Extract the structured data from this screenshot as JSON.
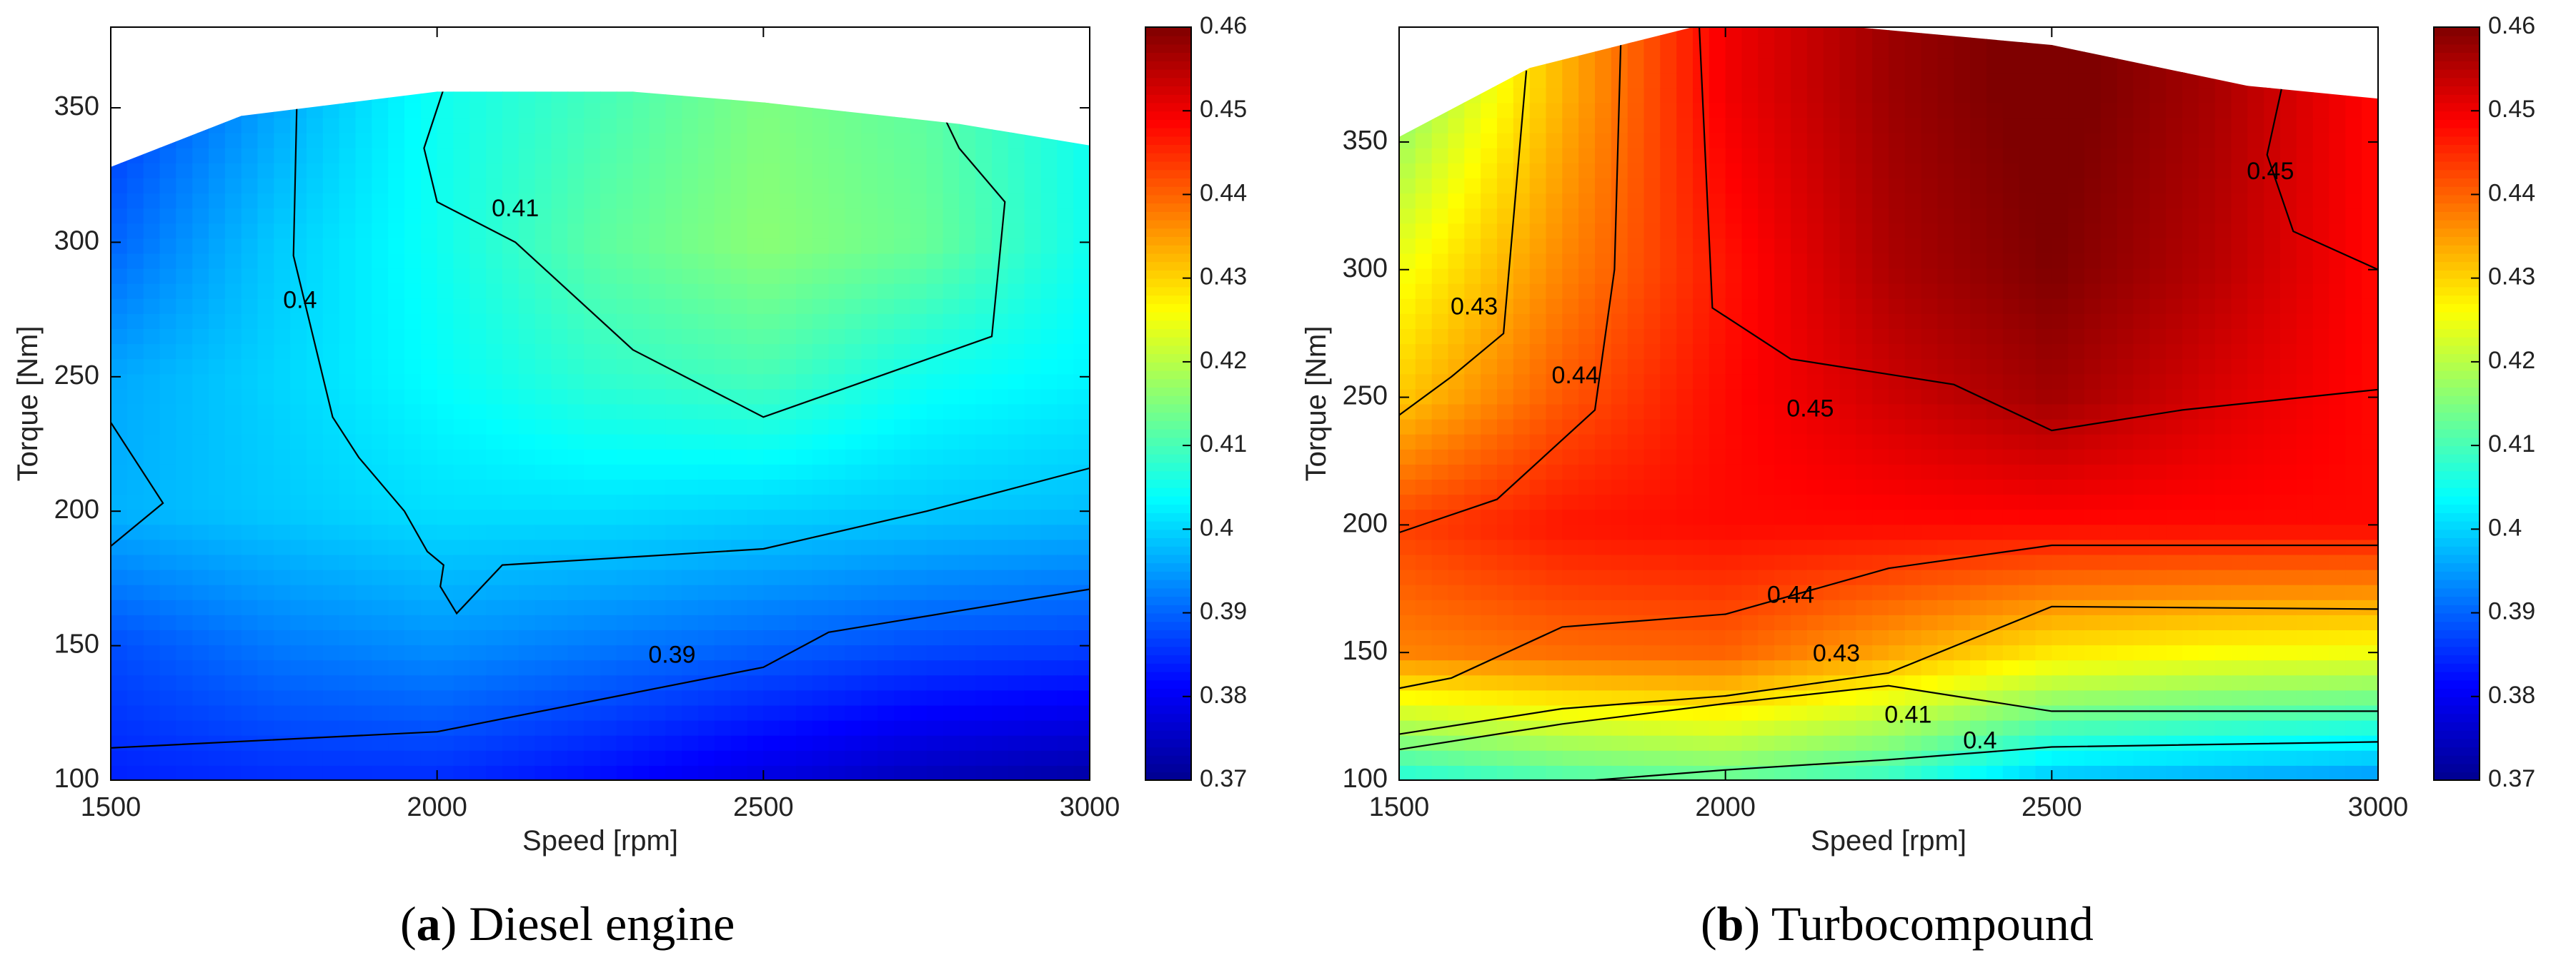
{
  "colors": {
    "colormap": [
      "#00008f",
      "#0000ff",
      "#007fff",
      "#00ffff",
      "#7fff7f",
      "#ffff00",
      "#ff7f00",
      "#ff0000",
      "#7f0000"
    ],
    "contour_line": "#000000",
    "axis": "#000000"
  },
  "chart_data": [
    {
      "type": "heatmap",
      "id": "a",
      "caption_letter": "a",
      "caption_text": "Diesel engine",
      "xlabel": "Speed [rpm]",
      "ylabel": "Torque [Nm]",
      "xlim": [
        1500,
        3000
      ],
      "ylim": [
        100,
        380
      ],
      "xticks": [
        1500,
        2000,
        2500,
        3000
      ],
      "yticks": [
        100,
        150,
        200,
        250,
        300,
        350
      ],
      "colorbar": {
        "min": 0.37,
        "max": 0.46,
        "ticks": [
          "0.37",
          "0.38",
          "0.39",
          "0.4",
          "0.41",
          "0.42",
          "0.43",
          "0.44",
          "0.45",
          "0.46"
        ]
      },
      "max_torque_curve": {
        "speed": [
          1500,
          1700,
          2000,
          2300,
          2500,
          2800,
          3000
        ],
        "torque": [
          328,
          347,
          356,
          356,
          352,
          344,
          336
        ]
      },
      "grid": {
        "speed": [
          1500,
          1750,
          2000,
          2250,
          2500,
          2750,
          3000
        ],
        "torque": [
          100,
          150,
          200,
          250,
          300,
          350
        ],
        "efficiency": [
          [
            0.384,
            0.385,
            0.385,
            0.382,
            0.378,
            0.374,
            0.372
          ],
          [
            0.388,
            0.392,
            0.394,
            0.392,
            0.39,
            0.388,
            0.387
          ],
          [
            0.397,
            0.399,
            0.401,
            0.401,
            0.4,
            0.399,
            0.398
          ],
          [
            0.396,
            0.4,
            0.404,
            0.408,
            0.41,
            0.405,
            0.403
          ],
          [
            0.39,
            0.399,
            0.405,
            0.412,
            0.416,
            0.413,
            0.405
          ],
          [
            0.386,
            0.396,
            0.405,
            0.41,
            0.415,
            0.412,
            0.405
          ]
        ]
      },
      "contours": [
        {
          "level": "0.39",
          "speed": [
            1500,
            2000,
            2250,
            2500,
            2600,
            3000
          ],
          "torque": [
            112,
            118,
            130,
            142,
            155,
            171
          ]
        },
        {
          "level": "0.4",
          "speed": [
            1500,
            1580,
            1500
          ],
          "torque": [
            233,
            203,
            187
          ]
        },
        {
          "level": "0.4",
          "speed": [
            1785,
            1780,
            1840,
            1880,
            1950,
            1985,
            2010,
            2005,
            2030,
            2100,
            2500,
            2750,
            3000
          ],
          "torque": [
            350,
            295,
            235,
            220,
            200,
            185,
            180,
            172,
            162,
            180,
            186,
            200,
            216
          ]
        },
        {
          "level": "0.41",
          "speed": [
            2010,
            1980,
            2000,
            2120,
            2300,
            2500,
            2850,
            2870,
            2800,
            2770
          ],
          "torque": [
            357,
            335,
            315,
            300,
            260,
            235,
            265,
            315,
            335,
            350
          ]
        }
      ],
      "contour_labels": [
        {
          "text": "0.39",
          "speed": 2360,
          "torque": 146
        },
        {
          "text": "0.4",
          "speed": 1790,
          "torque": 278
        },
        {
          "text": "0.41",
          "speed": 2120,
          "torque": 312
        }
      ]
    },
    {
      "type": "heatmap",
      "id": "b",
      "caption_letter": "b",
      "caption_text": "Turbocompound",
      "xlabel": "Speed [rpm]",
      "ylabel": "Torque [Nm]",
      "xlim": [
        1500,
        3000
      ],
      "ylim": [
        100,
        395
      ],
      "xticks": [
        1500,
        2000,
        2500,
        3000
      ],
      "yticks": [
        100,
        150,
        200,
        250,
        300,
        350
      ],
      "colorbar": {
        "min": 0.37,
        "max": 0.46,
        "ticks": [
          "0.37",
          "0.38",
          "0.39",
          "0.4",
          "0.41",
          "0.42",
          "0.43",
          "0.44",
          "0.45",
          "0.46"
        ]
      },
      "max_torque_curve": {
        "speed": [
          1500,
          1700,
          1950,
          2200,
          2500,
          2800,
          3000
        ],
        "torque": [
          352,
          379,
          395,
          395,
          388,
          372,
          367
        ]
      },
      "grid": {
        "speed": [
          1500,
          1750,
          2000,
          2250,
          2500,
          2750,
          3000
        ],
        "torque": [
          100,
          150,
          200,
          250,
          300,
          350
        ],
        "efficiency": [
          [
            0.406,
            0.41,
            0.412,
            0.408,
            0.398,
            0.396,
            0.394
          ],
          [
            0.437,
            0.439,
            0.44,
            0.434,
            0.428,
            0.426,
            0.425
          ],
          [
            0.443,
            0.447,
            0.448,
            0.448,
            0.448,
            0.448,
            0.448
          ],
          [
            0.431,
            0.441,
            0.448,
            0.453,
            0.457,
            0.452,
            0.448
          ],
          [
            0.425,
            0.437,
            0.447,
            0.456,
            0.46,
            0.455,
            0.448
          ],
          [
            0.418,
            0.434,
            0.449,
            0.457,
            0.461,
            0.456,
            0.448
          ]
        ]
      },
      "contours": [
        {
          "level": "0.4",
          "speed": [
            1800,
            2000,
            2250,
            2500,
            3000
          ],
          "torque": [
            100,
            104,
            108,
            113,
            115
          ]
        },
        {
          "level": "0.41",
          "speed": [
            1500,
            1750,
            2000,
            2250,
            2500,
            3000
          ],
          "torque": [
            112,
            122,
            130,
            137,
            127,
            127
          ]
        },
        {
          "level": "0.43",
          "speed": [
            1500,
            1750,
            2000,
            2250,
            2500,
            3000
          ],
          "torque": [
            118,
            128,
            133,
            142,
            168,
            167
          ]
        },
        {
          "level": "0.44",
          "speed": [
            1500,
            1580,
            1750,
            2000,
            2250,
            2500,
            3000
          ],
          "torque": [
            136,
            140,
            160,
            165,
            183,
            192,
            192
          ]
        },
        {
          "level": "0.43",
          "speed": [
            1500,
            1580,
            1660,
            1695
          ],
          "torque": [
            243,
            258,
            275,
            378
          ]
        },
        {
          "level": "0.44",
          "speed": [
            1500,
            1650,
            1800,
            1830,
            1840
          ],
          "torque": [
            197,
            210,
            245,
            300,
            392
          ]
        },
        {
          "level": "0.45",
          "speed": [
            1960,
            1980,
            2100,
            2350,
            2500,
            2700,
            3000
          ],
          "torque": [
            395,
            285,
            265,
            255,
            237,
            245,
            253
          ]
        },
        {
          "level": "0.45",
          "speed": [
            2860,
            2830,
            2870,
            3000
          ],
          "torque": [
            380,
            345,
            315,
            300
          ]
        }
      ],
      "contour_labels": [
        {
          "text": "0.43",
          "speed": 1615,
          "torque": 285
        },
        {
          "text": "0.44",
          "speed": 1770,
          "torque": 258
        },
        {
          "text": "0.45",
          "speed": 2130,
          "torque": 245
        },
        {
          "text": "0.45",
          "speed": 2835,
          "torque": 338
        },
        {
          "text": "0.44",
          "speed": 2100,
          "torque": 172
        },
        {
          "text": "0.43",
          "speed": 2170,
          "torque": 149
        },
        {
          "text": "0.41",
          "speed": 2280,
          "torque": 125
        },
        {
          "text": "0.4",
          "speed": 2390,
          "torque": 115
        }
      ]
    }
  ]
}
